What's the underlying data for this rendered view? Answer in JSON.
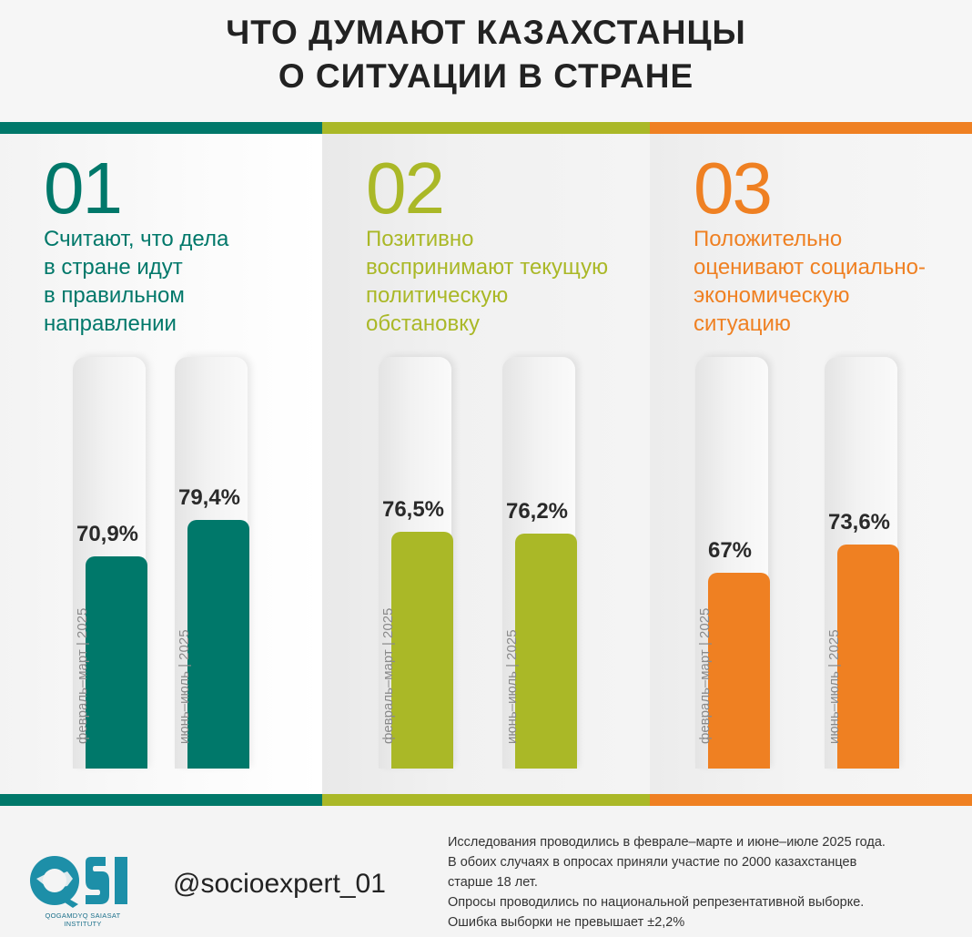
{
  "title": {
    "line1": "ЧТО ДУМАЮТ КАЗАХСТАНЦЫ",
    "line2": "О СИТУАЦИИ В СТРАНЕ"
  },
  "colors": {
    "teal": "#00786a",
    "olive": "#aab827",
    "orange": "#ef8022"
  },
  "chart_data": [
    {
      "type": "bar",
      "number": "01",
      "caption": [
        "Считают, что дела",
        "в стране идут",
        "в правильном",
        "направлении"
      ],
      "categories": [
        "февраль–март | 2025",
        "июнь–июль | 2025"
      ],
      "values": [
        70.9,
        79.4
      ],
      "value_labels": [
        "70,9%",
        "79,4%"
      ],
      "unit": "%",
      "ylim": [
        0,
        100
      ],
      "color": "#00786a"
    },
    {
      "type": "bar",
      "number": "02",
      "caption": [
        "Позитивно",
        "воспринимают текущую",
        "политическую",
        "обстановку"
      ],
      "categories": [
        "февраль–март | 2025",
        "июнь–июль | 2025"
      ],
      "values": [
        76.5,
        76.2
      ],
      "value_labels": [
        "76,5%",
        "76,2%"
      ],
      "unit": "%",
      "ylim": [
        0,
        100
      ],
      "color": "#aab827"
    },
    {
      "type": "bar",
      "number": "03",
      "caption": [
        "Положительно",
        "оценивают социально-",
        "экономическую",
        "ситуацию"
      ],
      "categories": [
        "февраль–март | 2025",
        "июнь–июль | 2025"
      ],
      "values": [
        67,
        73.6
      ],
      "value_labels": [
        "67%",
        "73,6%"
      ],
      "unit": "%",
      "ylim": [
        0,
        100
      ],
      "color": "#ef8022"
    }
  ],
  "footer": {
    "logo_text": "QSI",
    "logo_subtitle": "QOGAMDYQ SAIASAT INSTITUTY",
    "handle": "@socioexpert_01",
    "notes": [
      "Исследования проводились в феврале–марте и июне–июле 2025 года.",
      "В обоих случаях в опросах приняли участие по 2000 казахстанцев",
      "старше 18 лет.",
      "Опросы проводились по национальной репрезентативной выборке.",
      "Ошибка выборки не превышает  ±2,2%"
    ]
  }
}
